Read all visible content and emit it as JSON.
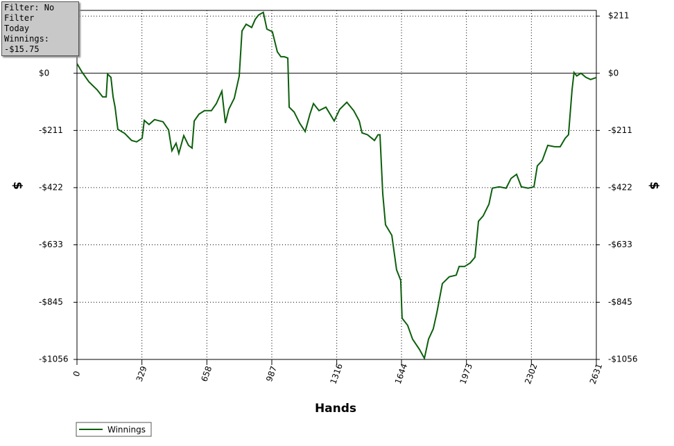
{
  "info": {
    "filter": "Filter: No Filter",
    "period": "Today",
    "winnings": "Winnings: -$15.75"
  },
  "chart_data": {
    "type": "line",
    "x_label": "Hands",
    "y_label": "$",
    "y2_label": "$",
    "xlim": [
      0,
      2631
    ],
    "xticks": [
      0,
      329,
      658,
      987,
      1316,
      1644,
      1973,
      2302,
      2631
    ],
    "ylim": [
      -1056,
      232
    ],
    "yticks": [
      {
        "value": 211,
        "label": "$211"
      },
      {
        "value": 0,
        "label": "$0"
      },
      {
        "value": -211,
        "label": "-$211"
      },
      {
        "value": -422,
        "label": "-$422"
      },
      {
        "value": -633,
        "label": "-$633"
      },
      {
        "value": -845,
        "label": "-$845"
      },
      {
        "value": -1056,
        "label": "-$1056"
      }
    ],
    "grid": true,
    "legend": "bottom-left",
    "series": [
      {
        "name": "Winnings",
        "color": "#0b5e0b",
        "x": [
          0,
          25,
          60,
          102,
          130,
          148,
          155,
          172,
          183,
          193,
          207,
          242,
          277,
          302,
          330,
          341,
          365,
          393,
          436,
          464,
          481,
          502,
          516,
          541,
          565,
          583,
          594,
          618,
          646,
          681,
          706,
          734,
          752,
          769,
          797,
          822,
          836,
          857,
          885,
          903,
          920,
          944,
          962,
          990,
          1015,
          1033,
          1050,
          1068,
          1075,
          1100,
          1128,
          1156,
          1180,
          1198,
          1226,
          1261,
          1303,
          1331,
          1367,
          1402,
          1430,
          1444,
          1472,
          1507,
          1525,
          1535,
          1549,
          1563,
          1595,
          1619,
          1640,
          1647,
          1675,
          1700,
          1735,
          1760,
          1781,
          1805,
          1823,
          1851,
          1886,
          1921,
          1936,
          1964,
          1992,
          2016,
          2034,
          2058,
          2087,
          2104,
          2139,
          2174,
          2199,
          2227,
          2251,
          2286,
          2315,
          2332,
          2357,
          2385,
          2420,
          2448,
          2473,
          2490,
          2508,
          2518,
          2532,
          2553,
          2578,
          2602,
          2631
        ],
        "values": [
          36,
          5,
          -31,
          -61,
          -87,
          -87,
          -3,
          -15,
          -87,
          -125,
          -207,
          -222,
          -248,
          -253,
          -240,
          -174,
          -189,
          -171,
          -179,
          -209,
          -286,
          -258,
          -296,
          -230,
          -266,
          -276,
          -176,
          -151,
          -138,
          -138,
          -112,
          -66,
          -184,
          -133,
          -92,
          -10,
          156,
          181,
          169,
          199,
          215,
          225,
          163,
          153,
          79,
          61,
          61,
          56,
          -125,
          -143,
          -184,
          -215,
          -151,
          -112,
          -138,
          -125,
          -176,
          -133,
          -107,
          -138,
          -176,
          -220,
          -227,
          -248,
          -227,
          -227,
          -444,
          -559,
          -598,
          -725,
          -764,
          -904,
          -930,
          -981,
          -1019,
          -1052,
          -981,
          -943,
          -884,
          -776,
          -751,
          -745,
          -713,
          -713,
          -700,
          -679,
          -546,
          -526,
          -483,
          -424,
          -419,
          -424,
          -388,
          -373,
          -419,
          -424,
          -419,
          -342,
          -322,
          -266,
          -271,
          -271,
          -240,
          -227,
          -61,
          3,
          -10,
          0,
          -15,
          -23,
          -15.75
        ]
      }
    ]
  }
}
